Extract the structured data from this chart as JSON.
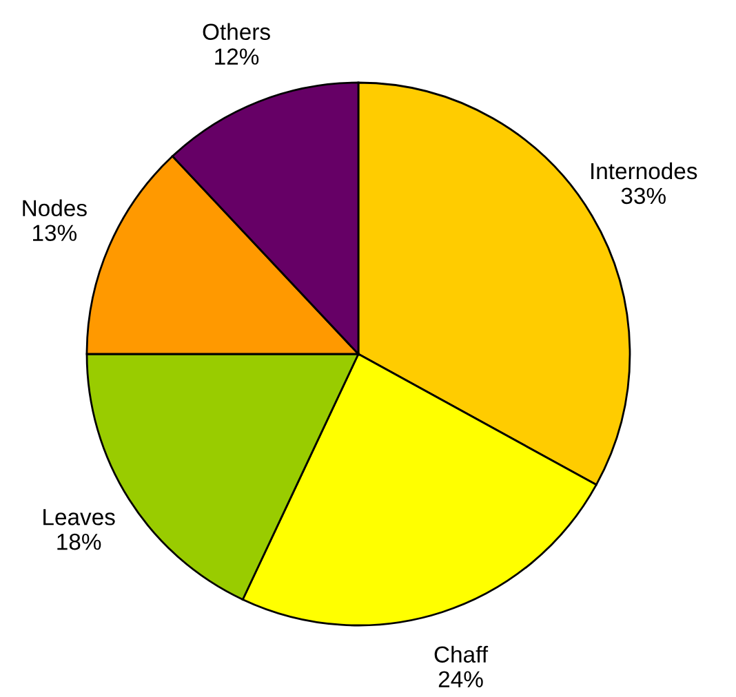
{
  "chart_data": {
    "type": "pie",
    "categories": [
      "Internodes",
      "Chaff",
      "Leaves",
      "Nodes",
      "Others"
    ],
    "values": [
      33,
      24,
      18,
      13,
      12
    ],
    "value_labels": [
      "33%",
      "24%",
      "18%",
      "13%",
      "12%"
    ],
    "colors": [
      "#ffcc00",
      "#ffff00",
      "#99cc00",
      "#ff9900",
      "#660066"
    ],
    "legend": false
  }
}
